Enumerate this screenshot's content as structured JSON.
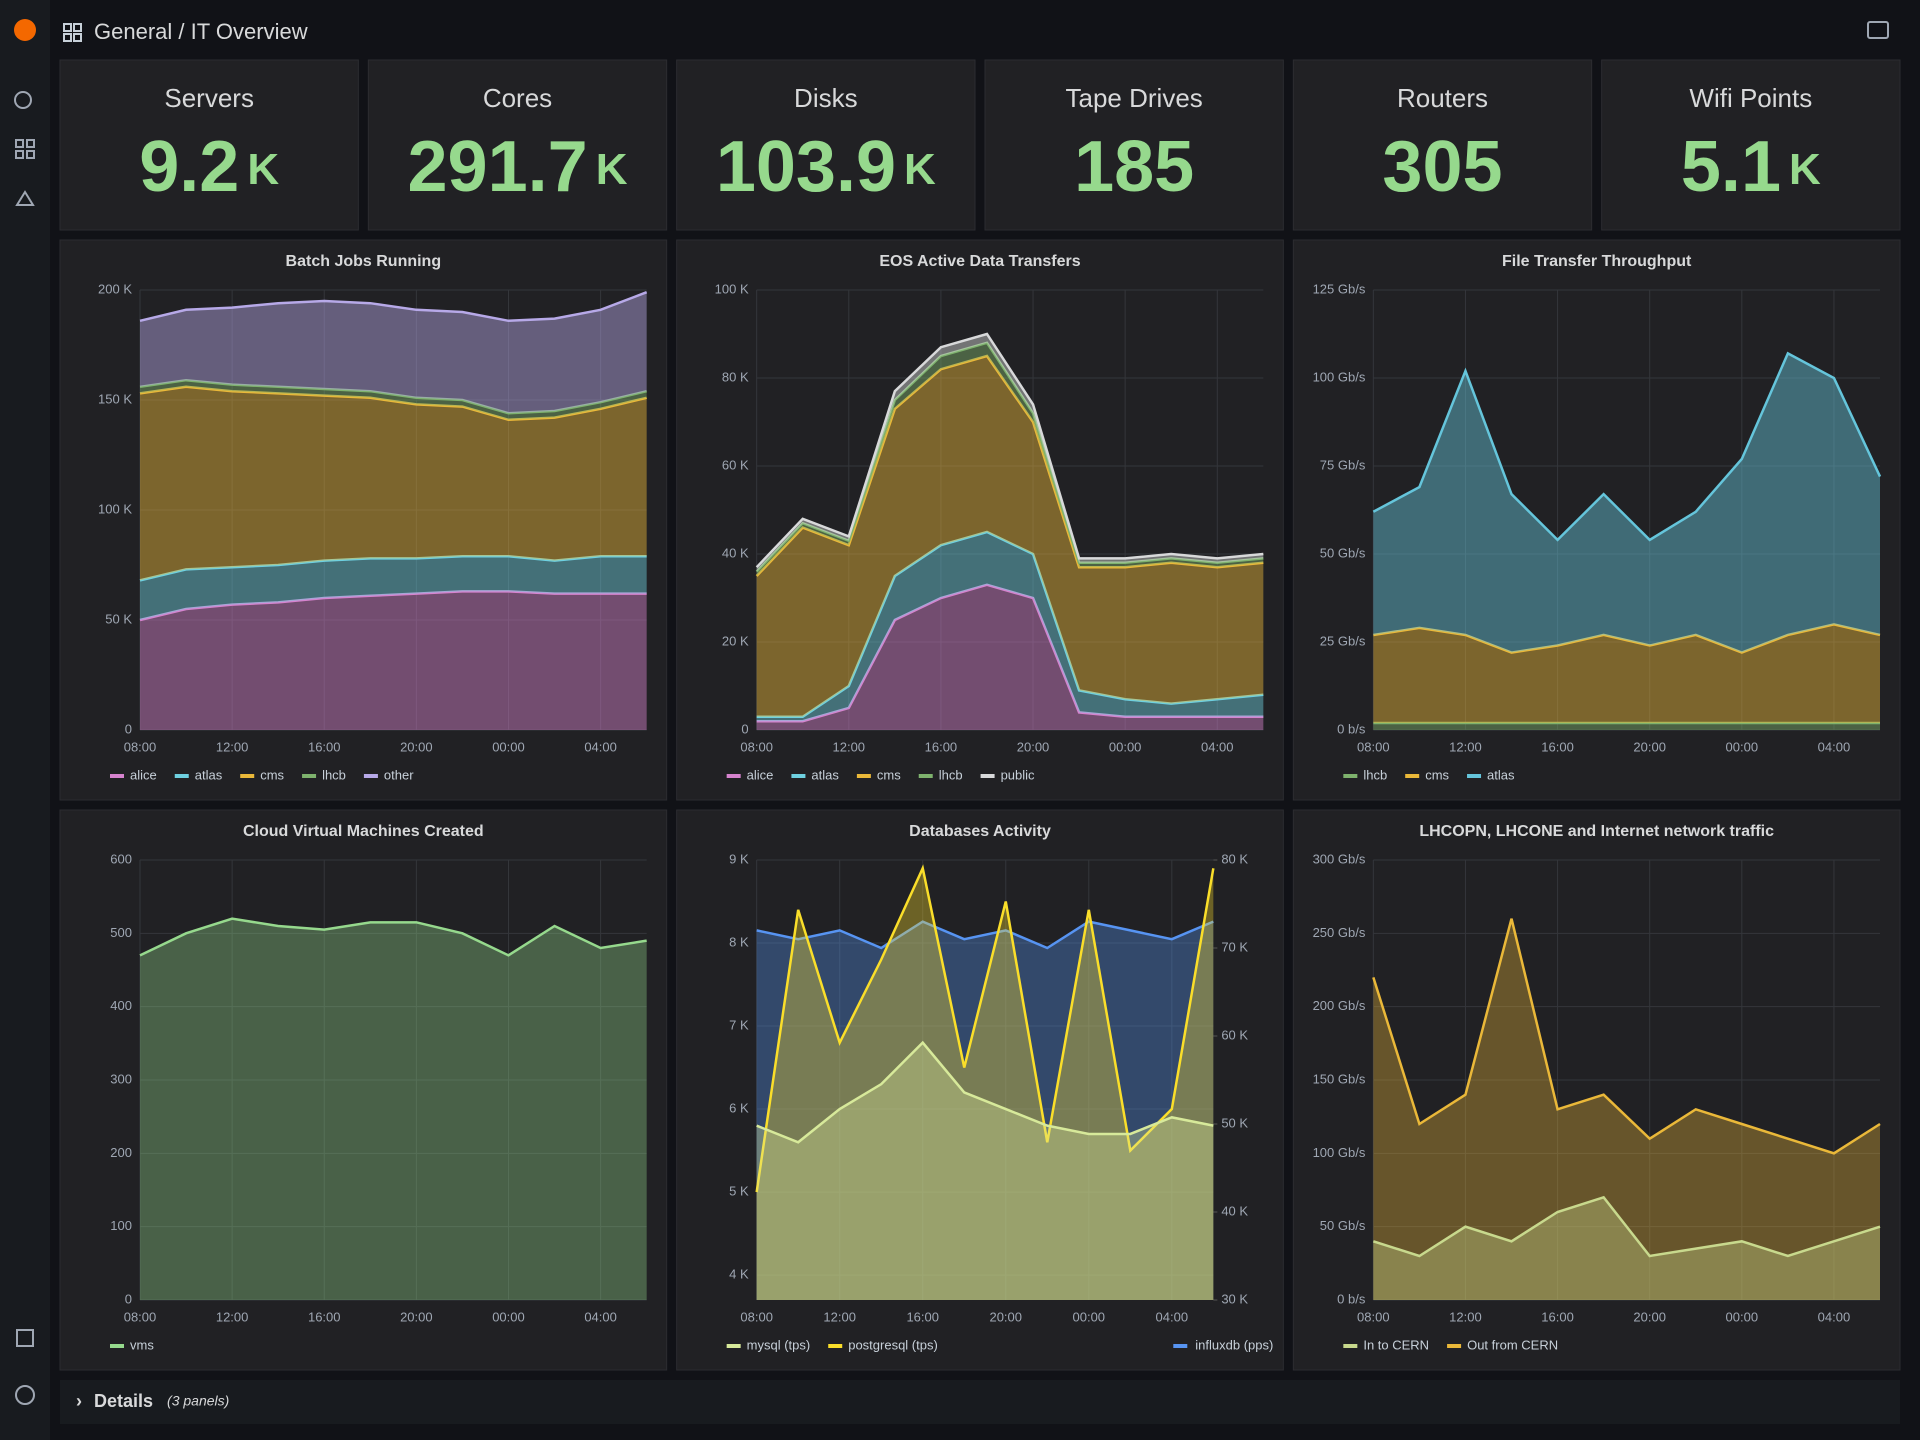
{
  "header": {
    "folder": "General",
    "title": "/ IT Overview"
  },
  "stats": [
    {
      "title": "Servers",
      "value": 9.2,
      "unit": "K"
    },
    {
      "title": "Cores",
      "value": 291.7,
      "unit": "K"
    },
    {
      "title": "Disks",
      "value": 103.9,
      "unit": "K"
    },
    {
      "title": "Tape Drives",
      "value": 185
    },
    {
      "title": "Routers",
      "value": 305
    },
    {
      "title": "Wifi Points",
      "value": 5.1,
      "unit": "K"
    }
  ],
  "chart_data": [
    {
      "type": "area",
      "stacked": true,
      "grid": true,
      "title": "Batch Jobs Running",
      "categories": [
        "08:00",
        null,
        "12:00",
        null,
        "16:00",
        null,
        "20:00",
        null,
        "00:00",
        null,
        "04:00",
        null
      ],
      "ylim": [
        0,
        200000
      ],
      "yticks": [
        0,
        {
          "value": 50000,
          "label": "50 K"
        },
        {
          "value": 100000,
          "label": "100 K"
        },
        {
          "value": 150000,
          "label": "150 K"
        },
        {
          "value": 200000,
          "label": "200 K"
        }
      ],
      "series": [
        {
          "name": "alice",
          "color": "#d683ce",
          "values": [
            50000,
            55000,
            57000,
            58000,
            60000,
            61000,
            62000,
            63000,
            63000,
            62000,
            62000,
            62000
          ]
        },
        {
          "name": "atlas",
          "color": "#6ed0e0",
          "values": [
            18000,
            18000,
            17000,
            17000,
            17000,
            17000,
            16000,
            16000,
            16000,
            15000,
            17000,
            17000
          ]
        },
        {
          "name": "cms",
          "color": "#eab839",
          "values": [
            85000,
            83000,
            80000,
            78000,
            75000,
            73000,
            70000,
            68000,
            62000,
            65000,
            67000,
            72000
          ]
        },
        {
          "name": "lhcb",
          "color": "#7eb26d",
          "values": [
            3000,
            3000,
            3000,
            3000,
            3000,
            3000,
            3000,
            3000,
            3000,
            3000,
            3000,
            3000
          ]
        },
        {
          "name": "other",
          "color": "#b7a9e8",
          "values": [
            30000,
            32000,
            35000,
            38000,
            40000,
            40000,
            40000,
            40000,
            42000,
            42000,
            42000,
            45000
          ]
        }
      ]
    },
    {
      "type": "area",
      "stacked": true,
      "grid": true,
      "title": "EOS Active Data Transfers",
      "categories": [
        "08:00",
        null,
        "12:00",
        null,
        "16:00",
        null,
        "20:00",
        null,
        "00:00",
        null,
        "04:00",
        null
      ],
      "ylim": [
        0,
        100000
      ],
      "yticks": [
        0,
        {
          "value": 20000,
          "label": "20 K"
        },
        {
          "value": 40000,
          "label": "40 K"
        },
        {
          "value": 60000,
          "label": "60 K"
        },
        {
          "value": 80000,
          "label": "80 K"
        },
        {
          "value": 100000,
          "label": "100 K"
        }
      ],
      "series": [
        {
          "name": "alice",
          "color": "#d683ce",
          "values": [
            2000,
            2000,
            5000,
            25000,
            30000,
            33000,
            30000,
            4000,
            3000,
            3000,
            3000,
            3000
          ]
        },
        {
          "name": "atlas",
          "color": "#6ed0e0",
          "values": [
            1000,
            1000,
            5000,
            10000,
            12000,
            12000,
            10000,
            5000,
            4000,
            3000,
            4000,
            5000
          ]
        },
        {
          "name": "cms",
          "color": "#eab839",
          "values": [
            32000,
            43000,
            32000,
            38000,
            40000,
            40000,
            30000,
            28000,
            30000,
            32000,
            30000,
            30000
          ]
        },
        {
          "name": "lhcb",
          "color": "#7eb26d",
          "values": [
            1000,
            1000,
            1000,
            2000,
            3000,
            3000,
            2000,
            1000,
            1000,
            1000,
            1000,
            1000
          ]
        },
        {
          "name": "public",
          "color": "#d8d9da",
          "values": [
            1000,
            1000,
            1000,
            2000,
            2000,
            2000,
            2000,
            1000,
            1000,
            1000,
            1000,
            1000
          ]
        }
      ]
    },
    {
      "type": "area",
      "stacked": true,
      "grid": true,
      "title": "File Transfer Throughput",
      "categories": [
        "08:00",
        null,
        "12:00",
        null,
        "16:00",
        null,
        "20:00",
        null,
        "00:00",
        null,
        "04:00",
        null
      ],
      "ylim": [
        0,
        125
      ],
      "yticks": [
        {
          "value": 0,
          "label": "0 b/s"
        },
        {
          "value": 25,
          "label": "25 Gb/s"
        },
        {
          "value": 50,
          "label": "50 Gb/s"
        },
        {
          "value": 75,
          "label": "75 Gb/s"
        },
        {
          "value": 100,
          "label": "100 Gb/s"
        },
        {
          "value": 125,
          "label": "125 Gb/s"
        }
      ],
      "series": [
        {
          "name": "lhcb",
          "color": "#7eb26d",
          "values": [
            2,
            2,
            2,
            2,
            2,
            2,
            2,
            2,
            2,
            2,
            2,
            2
          ]
        },
        {
          "name": "cms",
          "color": "#eab839",
          "values": [
            25,
            27,
            25,
            20,
            22,
            25,
            22,
            25,
            20,
            25,
            28,
            25
          ]
        },
        {
          "name": "atlas",
          "color": "#65c5db",
          "values": [
            35,
            40,
            75,
            45,
            30,
            40,
            30,
            35,
            55,
            80,
            70,
            45
          ]
        }
      ]
    },
    {
      "type": "area",
      "stacked": false,
      "grid": true,
      "title": "Cloud Virtual Machines Created",
      "categories": [
        "08:00",
        null,
        "12:00",
        null,
        "16:00",
        null,
        "20:00",
        null,
        "00:00",
        null,
        "04:00",
        null
      ],
      "ylim": [
        0,
        600
      ],
      "yticks": [
        0,
        100,
        200,
        300,
        400,
        500,
        600
      ],
      "series": [
        {
          "name": "vms",
          "color": "#96d98d",
          "values": [
            470,
            500,
            520,
            510,
            505,
            515,
            515,
            500,
            470,
            510,
            480,
            490
          ]
        }
      ]
    },
    {
      "type": "area",
      "stacked": false,
      "grid": true,
      "title": "Databases Activity",
      "categories": [
        "08:00",
        null,
        "12:00",
        null,
        "16:00",
        null,
        "20:00",
        null,
        "00:00",
        null,
        "04:00",
        null
      ],
      "ylim": [
        3700,
        9000
      ],
      "yticks": [
        {
          "value": 4000,
          "label": "4 K"
        },
        {
          "value": 5000,
          "label": "5 K"
        },
        {
          "value": 6000,
          "label": "6 K"
        },
        {
          "value": 7000,
          "label": "7 K"
        },
        {
          "value": 8000,
          "label": "8 K"
        },
        {
          "value": 9000,
          "label": "9 K"
        }
      ],
      "y2lim": [
        30000,
        80000
      ],
      "y2ticks": [
        {
          "value": 30000,
          "label": "30 K"
        },
        {
          "value": 40000,
          "label": "40 K"
        },
        {
          "value": 50000,
          "label": "50 K"
        },
        {
          "value": 60000,
          "label": "60 K"
        },
        {
          "value": 70000,
          "label": "70 K"
        },
        {
          "value": 80000,
          "label": "80 K"
        }
      ],
      "series": [
        {
          "name": "mysql (tps)",
          "color": "#d7e99a",
          "values": [
            5800,
            5600,
            6000,
            6300,
            6800,
            6200,
            6000,
            5800,
            5700,
            5700,
            5900,
            5800
          ]
        },
        {
          "name": "postgresql (tps)",
          "color": "#fade2a",
          "values": [
            5000,
            8400,
            6800,
            7800,
            8900,
            6500,
            8500,
            5600,
            8400,
            5500,
            6000,
            8900
          ]
        },
        {
          "name": "influxdb (pps)",
          "color": "#5794f2",
          "axis": "y2",
          "values": [
            72000,
            71000,
            72000,
            70000,
            73000,
            71000,
            72000,
            70000,
            73000,
            72000,
            71000,
            73000
          ]
        }
      ]
    },
    {
      "type": "area",
      "stacked": false,
      "grid": true,
      "title": "LHCOPN, LHCONE and Internet network traffic",
      "categories": [
        "08:00",
        null,
        "12:00",
        null,
        "16:00",
        null,
        "20:00",
        null,
        "00:00",
        null,
        "04:00",
        null
      ],
      "ylim": [
        0,
        300
      ],
      "yticks": [
        {
          "value": 0,
          "label": "0 b/s"
        },
        {
          "value": 50,
          "label": "50 Gb/s"
        },
        {
          "value": 100,
          "label": "100 Gb/s"
        },
        {
          "value": 150,
          "label": "150 Gb/s"
        },
        {
          "value": 200,
          "label": "200 Gb/s"
        },
        {
          "value": 250,
          "label": "250 Gb/s"
        },
        {
          "value": 300,
          "label": "300 Gb/s"
        }
      ],
      "series": [
        {
          "name": "In to CERN",
          "color": "#c8d98d",
          "values": [
            40,
            30,
            50,
            40,
            60,
            70,
            30,
            35,
            40,
            30,
            40,
            50
          ]
        },
        {
          "name": "Out from CERN",
          "color": "#eab839",
          "values": [
            220,
            120,
            140,
            260,
            130,
            140,
            110,
            130,
            120,
            110,
            100,
            120
          ]
        }
      ]
    }
  ],
  "footer": {
    "row": "Details",
    "note": "(3 panels)"
  }
}
